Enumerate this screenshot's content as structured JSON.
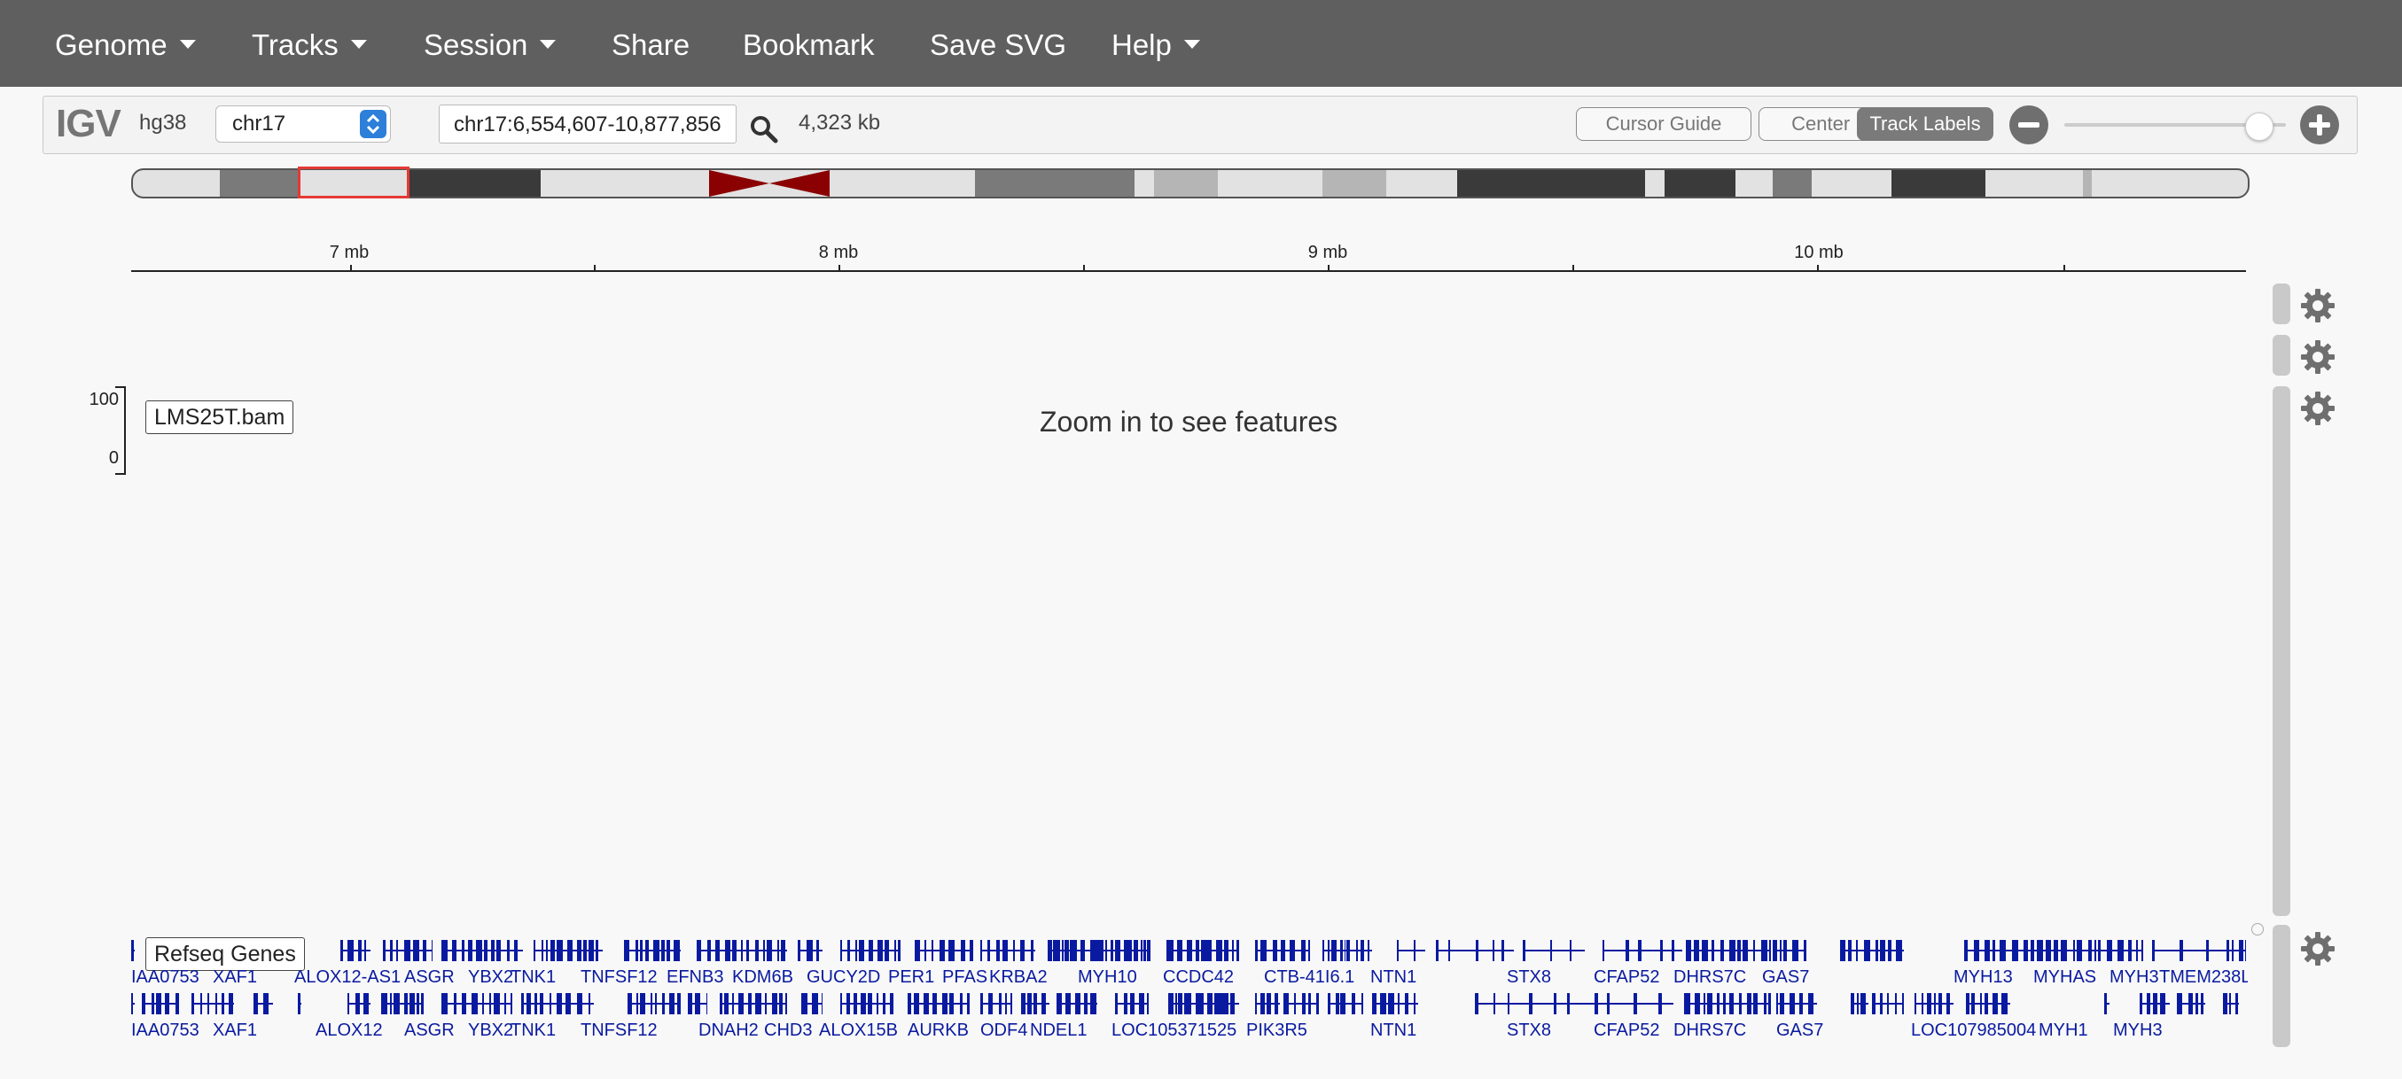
{
  "menu": [
    {
      "label": "Genome",
      "dropdown": true
    },
    {
      "label": "Tracks",
      "dropdown": true
    },
    {
      "label": "Session",
      "dropdown": true
    },
    {
      "label": "Share",
      "dropdown": false
    },
    {
      "label": "Bookmark",
      "dropdown": false
    },
    {
      "label": "Save SVG",
      "dropdown": false
    },
    {
      "label": "Help",
      "dropdown": true
    }
  ],
  "toolbar": {
    "logo": "IGV",
    "genome": "hg38",
    "chromosome": "chr17",
    "locus": "chr17:6,554,607-10,877,856",
    "width": "4,323 kb",
    "cursor_guide": "Cursor Guide",
    "center_line": "Center Line",
    "track_labels": "Track Labels"
  },
  "ruler": {
    "ticks": [
      "7 mb",
      "8 mb",
      "9 mb",
      "10 mb"
    ]
  },
  "alignment_track": {
    "label": "LMS25T.bam",
    "scale_max": "100",
    "scale_min": "0",
    "message": "Zoom in to see features"
  },
  "gene_track": {
    "label": "Refseq Genes",
    "row1_names": [
      "IAA0753",
      "XAF1",
      "ALOX12-AS1",
      "ASGR",
      "YBX2",
      "TNK1",
      "TNFSF12",
      "EFNB3",
      "KDM6B",
      "GUCY2D",
      "PER1",
      "PFAS",
      "KRBA2",
      "MYH10",
      "CCDC42",
      "CTB-41I6.1",
      "NTN1",
      "STX8",
      "CFAP52",
      "DHRS7C",
      "GAS7",
      "MYH13",
      "MYHAS",
      "MYH3",
      "TMEM238L"
    ],
    "row2_names": [
      "IAA0753",
      "XAF1",
      "ALOX12",
      "ASGR",
      "YBX2",
      "TNK1",
      "TNFSF12",
      "DNAH2",
      "CHD3",
      "ALOX15B",
      "AURKB",
      "ODF4",
      "NDEL1",
      "LOC105371525",
      "PIK3R5",
      "NTN1",
      "STX8",
      "CFAP52",
      "DHRS7C",
      "GAS7",
      "LOC107985004",
      "MYH1",
      "MYH3"
    ]
  },
  "colors": {
    "menubar": "#5f5f5f",
    "gene": "#0a1aa0",
    "ideogram_box": "#e53935",
    "centromere": "#8b0000"
  }
}
